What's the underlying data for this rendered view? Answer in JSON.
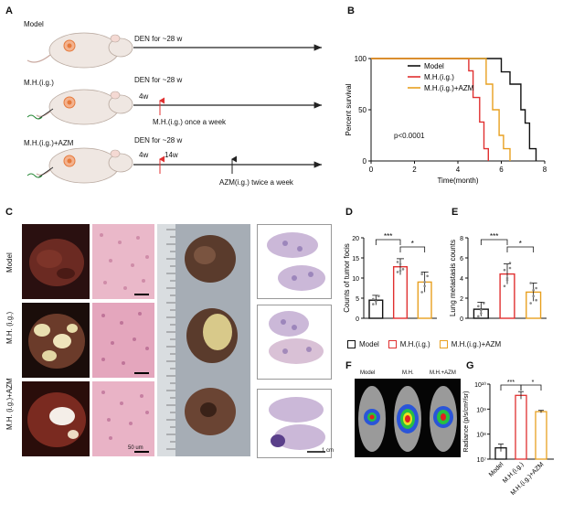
{
  "panel_labels": {
    "A": "A",
    "B": "B",
    "C": "C",
    "D": "D",
    "E": "E",
    "F": "F",
    "G": "G"
  },
  "panel_a": {
    "groups": [
      {
        "name": "Model",
        "schedule": "DEN for ~28 w"
      },
      {
        "name": "M.H.(i.g.)",
        "schedule": "DEN for ~28 w",
        "marker1": "4w",
        "note": "M.H.(i.g.)  once a week"
      },
      {
        "name": "M.H.(i.g.)+AZM",
        "schedule": "DEN for ~28 w",
        "marker1": "4w",
        "marker2": "14w",
        "note": "AZM(i.g.) twice a week"
      }
    ]
  },
  "panel_c": {
    "row_labels": [
      "Model",
      "M.H. (i.g.)",
      "M.H. (i.g.)+AZM"
    ],
    "scale_micro": "50 um",
    "scale_cm": "1 cm"
  },
  "panel_f": {
    "labels": [
      "Model",
      "M.H.",
      "M.H.+AZM"
    ]
  },
  "colors": {
    "model": "#111111",
    "mh": "#e03030",
    "azm": "#e8a020"
  },
  "chart_data": [
    {
      "id": "B",
      "type": "line",
      "title": "",
      "xlabel": "Time(month)",
      "ylabel": "Percent survival",
      "xlim": [
        0,
        8
      ],
      "ylim": [
        0,
        100
      ],
      "xticks": [
        0,
        2,
        4,
        6,
        8
      ],
      "yticks": [
        0,
        50,
        100
      ],
      "annotation": "p<0.0001",
      "series": [
        {
          "name": "Model",
          "color": "#111111",
          "steps": [
            [
              0,
              100
            ],
            [
              6.0,
              100
            ],
            [
              6.0,
              87
            ],
            [
              6.4,
              87
            ],
            [
              6.4,
              75
            ],
            [
              6.9,
              75
            ],
            [
              6.9,
              50
            ],
            [
              7.1,
              50
            ],
            [
              7.1,
              37
            ],
            [
              7.3,
              37
            ],
            [
              7.3,
              12
            ],
            [
              7.6,
              12
            ],
            [
              7.6,
              0
            ]
          ]
        },
        {
          "name": "M.H.(i.g.)",
          "color": "#e03030",
          "steps": [
            [
              0,
              100
            ],
            [
              4.5,
              100
            ],
            [
              4.5,
              88
            ],
            [
              4.7,
              88
            ],
            [
              4.7,
              62
            ],
            [
              5.0,
              62
            ],
            [
              5.0,
              38
            ],
            [
              5.2,
              38
            ],
            [
              5.2,
              12
            ],
            [
              5.4,
              12
            ],
            [
              5.4,
              0
            ]
          ]
        },
        {
          "name": "M.H.(i.g.)+AZM",
          "color": "#e8a020",
          "steps": [
            [
              0,
              100
            ],
            [
              5.3,
              100
            ],
            [
              5.3,
              75
            ],
            [
              5.6,
              75
            ],
            [
              5.6,
              50
            ],
            [
              5.9,
              50
            ],
            [
              5.9,
              25
            ],
            [
              6.1,
              25
            ],
            [
              6.1,
              12
            ],
            [
              6.4,
              12
            ],
            [
              6.4,
              0
            ]
          ]
        }
      ]
    },
    {
      "id": "D",
      "type": "bar",
      "ylabel": "Counts of tumor focis",
      "ylim": [
        0,
        20
      ],
      "yticks": [
        0,
        5,
        10,
        15,
        20
      ],
      "categories": [
        "Model",
        "M.H.(i.g.)",
        "M.H.(i.g.)+AZM"
      ],
      "values": [
        4.5,
        12.8,
        9.0
      ],
      "errors": [
        1.2,
        2.0,
        2.5
      ],
      "points": [
        [
          3.5,
          4.2,
          5.5,
          4.8
        ],
        [
          11.5,
          13.5,
          12.2,
          14.0,
          11.8
        ],
        [
          6.5,
          8.0,
          10.5,
          11.0,
          9.0
        ]
      ],
      "significance": [
        "***",
        "*"
      ],
      "legend": [
        "Model",
        "M.H.(i.g.)",
        "M.H.(i.g.)+AZM"
      ]
    },
    {
      "id": "E",
      "type": "bar",
      "ylabel": "Lung metastasis counts",
      "ylim": [
        0,
        8
      ],
      "yticks": [
        0,
        2,
        4,
        6,
        8
      ],
      "categories": [
        "Model",
        "M.H.(i.g.)",
        "M.H.(i.g.)+AZM"
      ],
      "values": [
        0.9,
        4.4,
        2.6
      ],
      "errors": [
        0.7,
        1.0,
        0.9
      ],
      "points": [
        [
          0.2,
          0.8,
          1.5,
          1.2,
          0.5
        ],
        [
          3.2,
          4.0,
          5.0,
          4.8,
          3.8,
          5.5
        ],
        [
          1.5,
          2.2,
          3.0,
          3.5,
          2.8,
          1.8
        ]
      ],
      "significance": [
        "***",
        "*"
      ]
    },
    {
      "id": "G",
      "type": "bar",
      "ylabel": "Radiance (p/s/cm²/sr)",
      "scale": "log",
      "ylim_exp": [
        7,
        10
      ],
      "ytick_labels": [
        "10⁷",
        "10⁸",
        "10⁹",
        "10¹⁰"
      ],
      "categories": [
        "Model",
        "M.H.(i.g.)",
        "M.H.(i.g.)+AZM"
      ],
      "log_values": [
        7.45,
        9.55,
        8.9
      ],
      "log_errors": [
        0.15,
        0.15,
        0.05
      ],
      "significance": [
        "***",
        "*"
      ]
    }
  ]
}
